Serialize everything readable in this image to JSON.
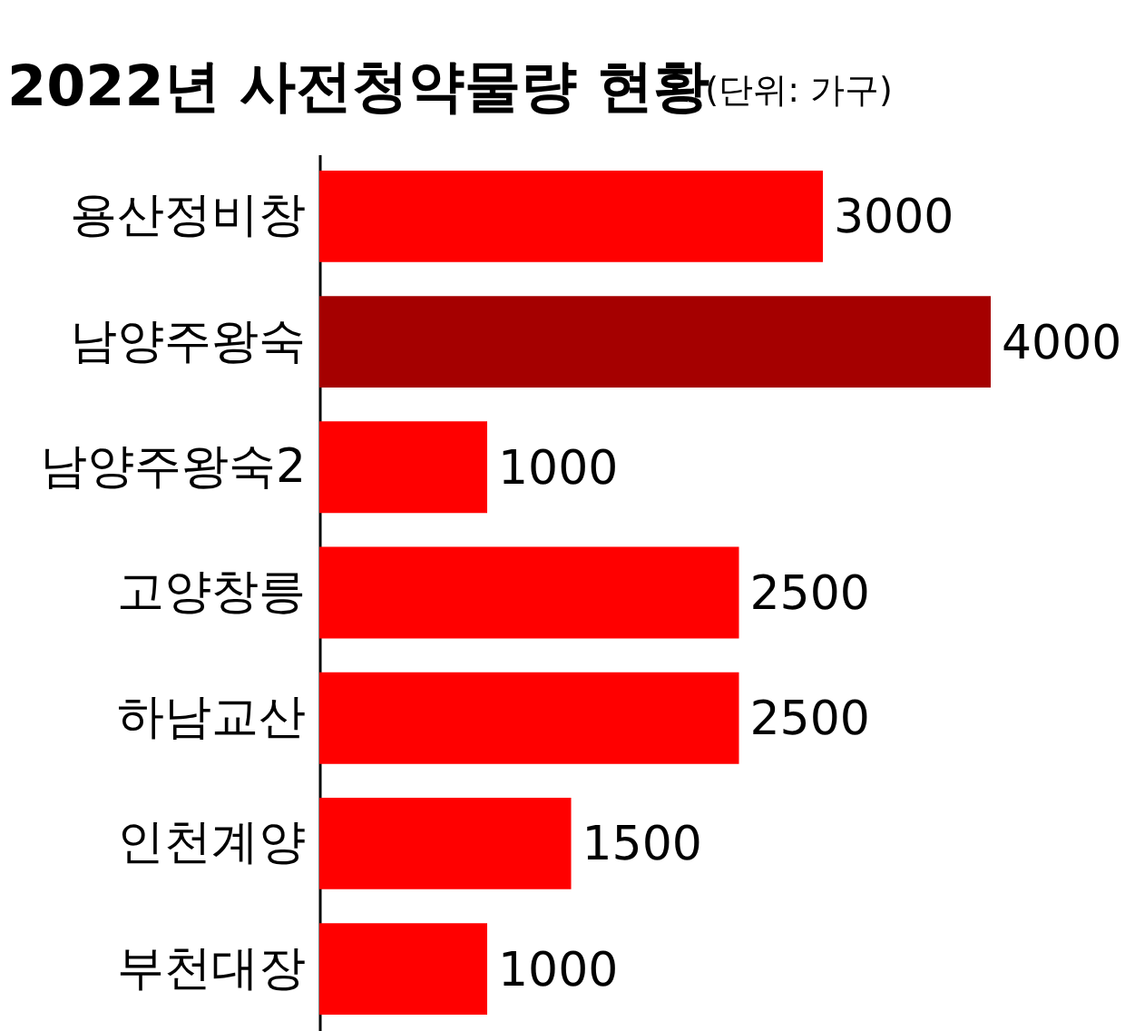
{
  "chart_data": {
    "type": "bar",
    "orientation": "horizontal",
    "title": "2022년 사전청약물량 현황",
    "subtitle": "(단위: 가구)",
    "categories": [
      "용산정비창",
      "남양주왕숙",
      "남양주왕숙2",
      "고양창릉",
      "하남교산",
      "인천계양",
      "부천대장"
    ],
    "values": [
      3000,
      4000,
      1000,
      2500,
      2500,
      1500,
      1000
    ],
    "colors": [
      "#ff0000",
      "#a50000",
      "#ff0000",
      "#ff0000",
      "#ff0000",
      "#ff0000",
      "#ff0000"
    ],
    "xlim": [
      0,
      4000
    ],
    "data_labels": true,
    "tick_labels": "y"
  }
}
